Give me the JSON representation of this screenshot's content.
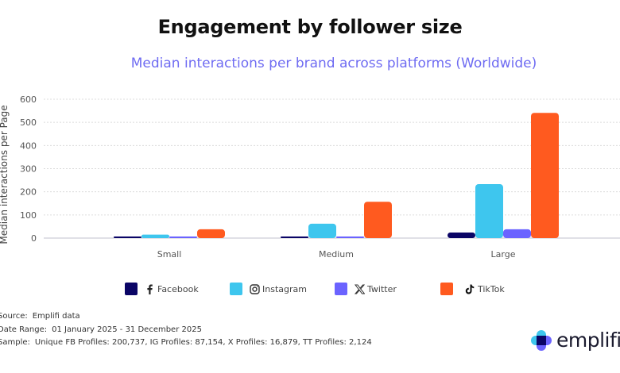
{
  "header": {
    "title": "Engagement by follower size",
    "subtitle": "Median interactions per brand across platforms (Worldwide)"
  },
  "chart_data": {
    "type": "bar",
    "title": "Engagement by follower size",
    "subtitle": "Median interactions per brand across platforms (Worldwide)",
    "xlabel": "",
    "ylabel": "Median interactions per Page",
    "ylim": [
      0,
      600
    ],
    "yticks": [
      "0",
      "100",
      "200",
      "300",
      "400",
      "500",
      "600"
    ],
    "ytick_values": [
      0,
      100,
      200,
      300,
      400,
      500,
      600
    ],
    "grid": true,
    "categories": [
      "Small",
      "Medium",
      "Large"
    ],
    "series": [
      {
        "name": "Facebook",
        "color": "#0b0566",
        "icon": "facebook-icon",
        "values": [
          1,
          5,
          24
        ]
      },
      {
        "name": "Instagram",
        "color": "#3ec6ee",
        "icon": "instagram-icon",
        "values": [
          15,
          62,
          233
        ]
      },
      {
        "name": "Twitter",
        "color": "#6b63ff",
        "icon": "x-twitter-icon",
        "values": [
          1,
          5,
          38
        ]
      },
      {
        "name": "TikTok",
        "color": "#ff5a1f",
        "icon": "tiktok-icon",
        "values": [
          38,
          157,
          541
        ]
      }
    ],
    "legend_position": "bottom"
  },
  "footer": {
    "source_label": "Source:",
    "source_value": "Emplifi data",
    "date_label": "Date Range:",
    "date_value": "01 January 2025 - 31 December 2025",
    "sample_label": "Sample:",
    "sample_value": "Unique FB Profiles: 200,737, IG Profiles: 87,154, X Profiles: 16,879, TT Profiles: 2,124"
  },
  "brand": {
    "logo_text": "emplifi"
  }
}
